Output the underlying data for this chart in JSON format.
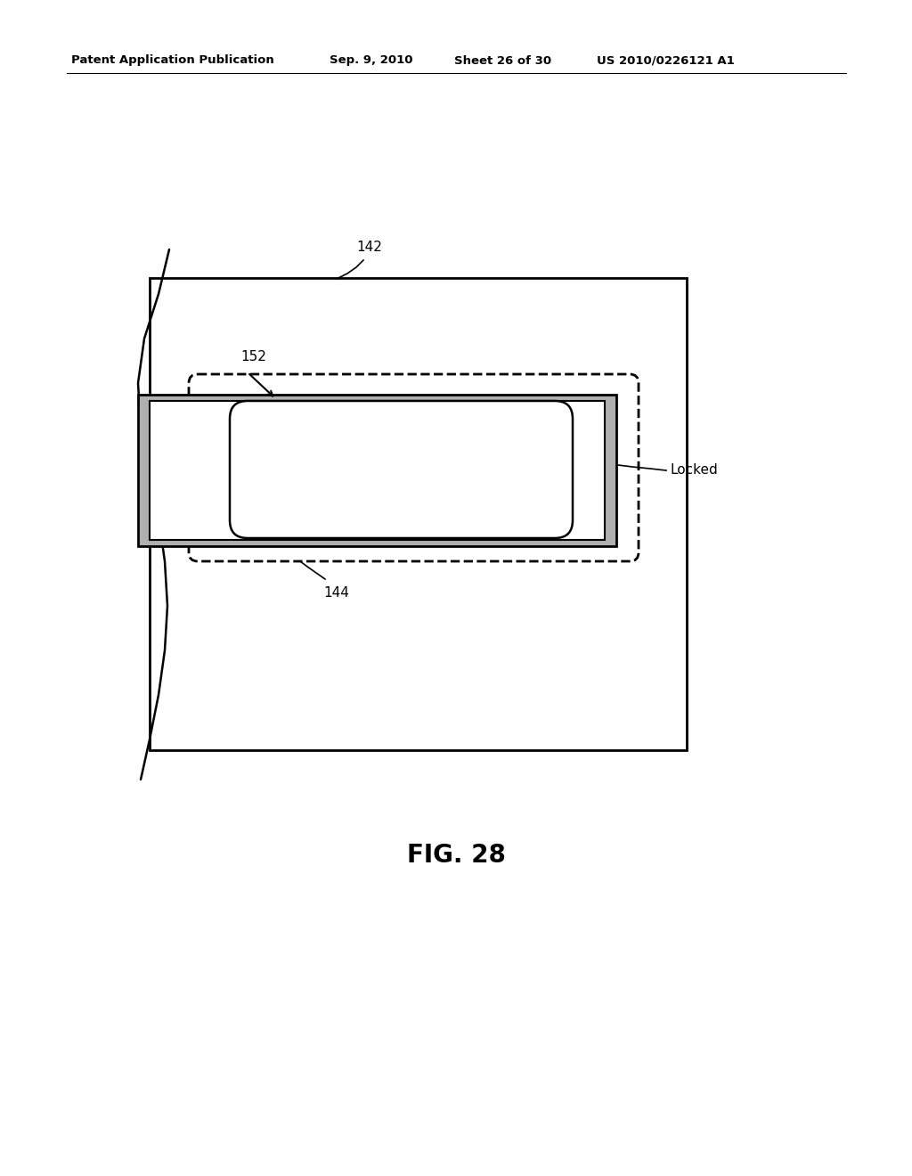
{
  "bg_color": "#ffffff",
  "header_text": "Patent Application Publication",
  "header_date": "Sep. 9, 2010",
  "header_sheet": "Sheet 26 of 30",
  "header_patent": "US 2010/0226121 A1",
  "fig_label": "FIG. 28",
  "label_142": "142",
  "label_144": "144",
  "label_152": "152",
  "label_locked": "Locked"
}
